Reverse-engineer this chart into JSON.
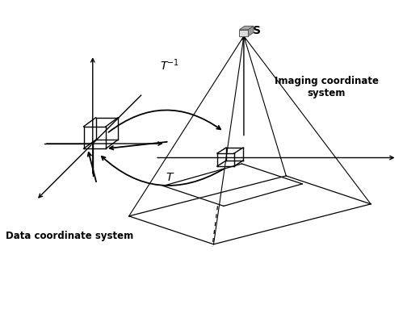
{
  "bg_color": "#ffffff",
  "text_color": "#000000",
  "line_color": "#000000",
  "data_label": "Data coordinate system",
  "imaging_label": "Imaging coordinate\nsystem",
  "T_label": "T",
  "T_inv_label": "T$^{-1}$",
  "S_label": "S",
  "figsize": [
    4.99,
    3.83
  ],
  "dpi": 100,
  "xlim": [
    0,
    10
  ],
  "ylim": [
    0,
    7.66
  ]
}
